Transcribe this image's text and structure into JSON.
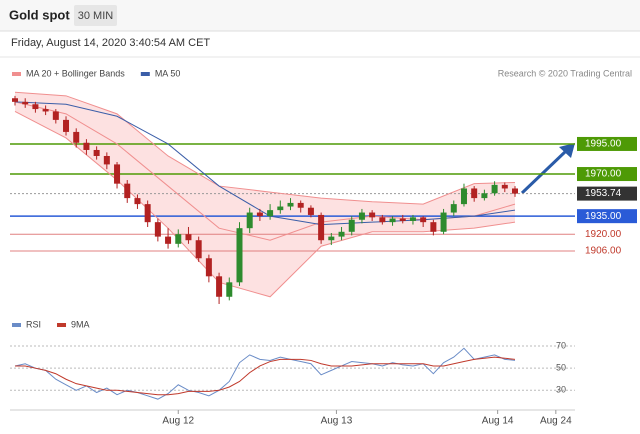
{
  "header": {
    "title": "Gold spot",
    "interval": "30 MIN",
    "timestamp": "Friday, August 14, 2020 3:40:54 AM CET"
  },
  "chart_data": [
    {
      "type": "candlestick",
      "credit": "Research © 2020 Trading Central",
      "up_color": "#2e8b2e",
      "down_color": "#b22222",
      "xlim": [
        0,
        49
      ],
      "ylim": [
        1857,
        2044
      ],
      "open": [
        2033,
        2030,
        2028,
        2024,
        2022,
        2015,
        2005,
        1996,
        1990,
        1985,
        1978,
        1962,
        1950,
        1945,
        1930,
        1918,
        1912,
        1920,
        1915,
        1900,
        1885,
        1868,
        1880,
        1925,
        1938,
        1935,
        1940,
        1943,
        1946,
        1942,
        1936,
        1915,
        1918,
        1922,
        1932,
        1938,
        1934,
        1930,
        1933,
        1931,
        1934,
        1930,
        1922,
        1938,
        1945,
        1958,
        1950,
        1954,
        1961,
        1958
      ],
      "high": [
        2035,
        2033,
        2030,
        2027,
        2024,
        2018,
        2008,
        1999,
        1993,
        1988,
        1980,
        1965,
        1953,
        1948,
        1933,
        1925,
        1924,
        1926,
        1918,
        1903,
        1888,
        1884,
        1930,
        1942,
        1941,
        1945,
        1948,
        1950,
        1948,
        1944,
        1938,
        1921,
        1926,
        1935,
        1941,
        1940,
        1936,
        1935,
        1936,
        1936,
        1935,
        1932,
        1941,
        1948,
        1962,
        1960,
        1957,
        1964,
        1963,
        1960
      ],
      "low": [
        2027,
        2025,
        2021,
        2019,
        2012,
        2002,
        1992,
        1986,
        1982,
        1974,
        1958,
        1946,
        1941,
        1926,
        1914,
        1908,
        1909,
        1912,
        1897,
        1880,
        1862,
        1865,
        1877,
        1921,
        1931,
        1932,
        1937,
        1940,
        1938,
        1934,
        1912,
        1911,
        1915,
        1919,
        1929,
        1931,
        1928,
        1927,
        1929,
        1928,
        1926,
        1919,
        1920,
        1935,
        1943,
        1947,
        1948,
        1952,
        1955,
        1951
      ],
      "close": [
        2030,
        2028,
        2024,
        2022,
        2015,
        2005,
        1996,
        1990,
        1985,
        1978,
        1962,
        1950,
        1945,
        1930,
        1918,
        1912,
        1920,
        1915,
        1900,
        1885,
        1868,
        1880,
        1925,
        1938,
        1935,
        1940,
        1943,
        1946,
        1942,
        1936,
        1915,
        1918,
        1922,
        1932,
        1938,
        1934,
        1930,
        1933,
        1931,
        1934,
        1930,
        1922,
        1938,
        1945,
        1958,
        1950,
        1954,
        1961,
        1958,
        1953.74
      ],
      "series": [
        {
          "name": "MA 20 + Bollinger Bands",
          "color": "#f08f8f",
          "band_color": "#fde1e1",
          "x": [
            0,
            5,
            10,
            15,
            20,
            25,
            30,
            35,
            40,
            45,
            49
          ],
          "values": [
            2030,
            2020,
            1995,
            1960,
            1925,
            1915,
            1930,
            1935,
            1932,
            1935,
            1945
          ],
          "upper": [
            2038,
            2035,
            2020,
            1985,
            1960,
            1955,
            1950,
            1947,
            1945,
            1962,
            1963
          ],
          "lower": [
            2022,
            2000,
            1965,
            1925,
            1880,
            1868,
            1910,
            1922,
            1922,
            1925,
            1930
          ]
        },
        {
          "name": "MA 50",
          "color": "#3b5ea8",
          "x": [
            0,
            5,
            10,
            15,
            20,
            25,
            30,
            35,
            40,
            45,
            49
          ],
          "values": [
            2030,
            2028,
            2018,
            1995,
            1960,
            1935,
            1928,
            1930,
            1932,
            1935,
            1940
          ]
        }
      ],
      "levels": [
        {
          "value": 1995,
          "label": "1995.00",
          "color": "#4e9a06",
          "style": "box"
        },
        {
          "value": 1970,
          "label": "1970.00",
          "color": "#4e9a06",
          "style": "box"
        },
        {
          "value": 1953.74,
          "label": "1953.74",
          "color": "#333333",
          "style": "current"
        },
        {
          "value": 1935,
          "label": "1935.00",
          "color": "#2a5bd7",
          "style": "box"
        },
        {
          "value": 1920,
          "label": "1920.00",
          "color": "#e08080",
          "style": "text"
        },
        {
          "value": 1906,
          "label": "1906.00",
          "color": "#e08080",
          "style": "text"
        }
      ]
    },
    {
      "type": "line",
      "xlim": [
        0,
        49
      ],
      "ylim": [
        14,
        80
      ],
      "yticks": [
        70,
        50,
        30
      ],
      "xticks": [
        {
          "value": 16,
          "label": "Aug 12"
        },
        {
          "value": 31.5,
          "label": "Aug 13"
        },
        {
          "value": 47.3,
          "label": "Aug 14"
        },
        {
          "value": 53,
          "label": "Aug 24"
        }
      ],
      "series": [
        {
          "name": "RSI",
          "color": "#6a8cc7",
          "values": [
            52,
            54,
            50,
            48,
            40,
            35,
            30,
            34,
            28,
            32,
            26,
            30,
            28,
            25,
            22,
            27,
            35,
            30,
            28,
            25,
            30,
            38,
            55,
            62,
            58,
            57,
            60,
            58,
            56,
            54,
            44,
            48,
            52,
            56,
            55,
            54,
            52,
            55,
            53,
            52,
            54,
            45,
            55,
            60,
            68,
            58,
            60,
            62,
            58,
            57
          ]
        },
        {
          "name": "9MA",
          "color": "#c0392b",
          "values": [
            52,
            52,
            50,
            48,
            45,
            40,
            36,
            34,
            32,
            30,
            30,
            29,
            28,
            27,
            26,
            26,
            27,
            29,
            29,
            29,
            30,
            33,
            38,
            46,
            52,
            56,
            58,
            58,
            58,
            57,
            54,
            52,
            52,
            52,
            53,
            54,
            54,
            54,
            54,
            54,
            54,
            52,
            52,
            54,
            56,
            58,
            59,
            60,
            59,
            58
          ]
        }
      ]
    }
  ]
}
